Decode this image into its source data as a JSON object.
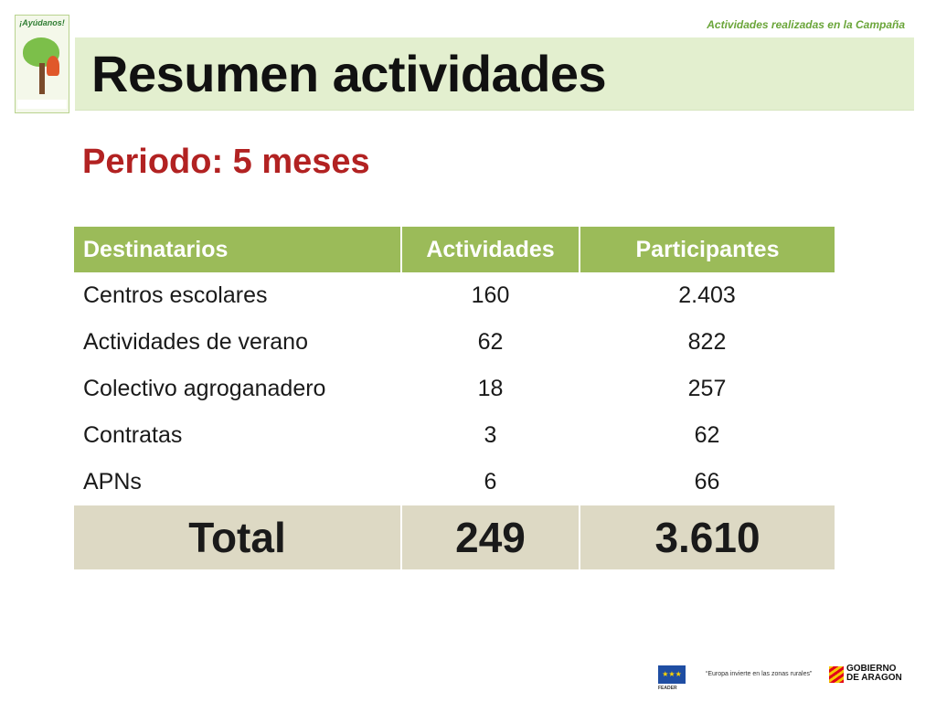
{
  "header_note": "Actividades realizadas en la Campaña",
  "title": "Resumen actividades",
  "subtitle": "Periodo: 5 meses",
  "poster": {
    "headline": "¡Ayúdanos!"
  },
  "table": {
    "headers": [
      "Destinatarios",
      "Actividades",
      "Participantes"
    ],
    "rows": [
      [
        "Centros escolares",
        "160",
        "2.403"
      ],
      [
        "Actividades de verano",
        "62",
        "822"
      ],
      [
        "Colectivo agroganadero",
        "18",
        "257"
      ],
      [
        "Contratas",
        "3",
        "62"
      ],
      [
        "APNs",
        "6",
        "66"
      ]
    ],
    "total": [
      "Total",
      "249",
      "3.610"
    ]
  },
  "footer": {
    "feader": "FEADER",
    "quote": "“Europa invierte en las zonas rurales”",
    "gov_line1": "GOBIERNO",
    "gov_line2": "DE ARAGON"
  },
  "colors": {
    "header_green": "#9bbb59",
    "title_band": "#e3efcf",
    "subtitle_red": "#b22222",
    "total_row": "#ddd9c4"
  }
}
